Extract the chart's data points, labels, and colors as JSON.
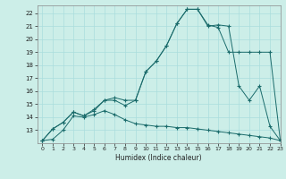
{
  "title": "",
  "xlabel": "Humidex (Indice chaleur)",
  "background_color": "#cceee8",
  "line_color": "#1a6b6b",
  "grid_color": "#aadddd",
  "xlim": [
    -0.5,
    23
  ],
  "ylim": [
    12,
    22.6
  ],
  "xticks": [
    0,
    1,
    2,
    3,
    4,
    5,
    6,
    7,
    8,
    9,
    10,
    11,
    12,
    13,
    14,
    15,
    16,
    17,
    18,
    19,
    20,
    21,
    22,
    23
  ],
  "yticks": [
    13,
    14,
    15,
    16,
    17,
    18,
    19,
    20,
    21,
    22
  ],
  "line1_x": [
    0,
    1,
    2,
    3,
    4,
    5,
    6,
    7,
    8,
    9,
    10,
    11,
    12,
    13,
    14,
    15,
    16,
    17,
    18,
    19,
    20,
    21,
    22,
    23
  ],
  "line1_y": [
    12.2,
    13.1,
    13.6,
    14.4,
    14.1,
    14.6,
    15.3,
    15.3,
    14.9,
    15.3,
    17.5,
    18.3,
    19.5,
    21.2,
    22.3,
    22.3,
    21.1,
    20.9,
    19.0,
    19.0,
    19.0,
    19.0,
    19.0,
    12.2
  ],
  "line2_x": [
    0,
    1,
    2,
    3,
    4,
    5,
    6,
    7,
    8,
    9,
    10,
    11,
    12,
    13,
    14,
    15,
    16,
    17,
    18,
    19,
    20,
    21,
    22,
    23
  ],
  "line2_y": [
    12.2,
    13.1,
    13.6,
    14.4,
    14.1,
    14.5,
    15.3,
    15.5,
    15.3,
    15.3,
    17.5,
    18.3,
    19.5,
    21.2,
    22.3,
    22.3,
    21.0,
    21.1,
    21.0,
    16.4,
    15.3,
    16.4,
    13.3,
    12.2
  ],
  "line3_x": [
    0,
    1,
    2,
    3,
    4,
    5,
    6,
    7,
    8,
    9,
    10,
    11,
    12,
    13,
    14,
    15,
    16,
    17,
    18,
    19,
    20,
    21,
    22,
    23
  ],
  "line3_y": [
    12.2,
    12.3,
    13.0,
    14.1,
    14.0,
    14.2,
    14.5,
    14.2,
    13.8,
    13.5,
    13.4,
    13.3,
    13.3,
    13.2,
    13.2,
    13.1,
    13.0,
    12.9,
    12.8,
    12.7,
    12.6,
    12.5,
    12.4,
    12.2
  ]
}
